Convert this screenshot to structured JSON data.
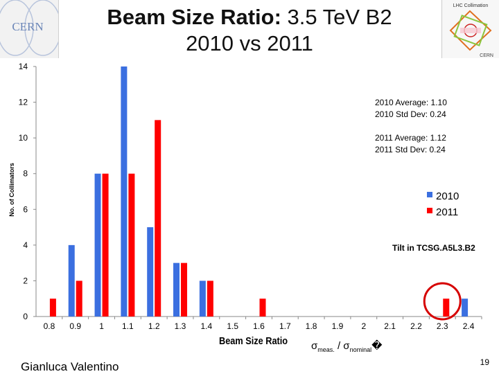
{
  "slide": {
    "title_bold": "Beam Size Ratio:",
    "title_rest": " 3.5 TeV B2",
    "title_line2": "2010 vs 2011",
    "author": "Gianluca Valentino",
    "page_number": "19",
    "logo_left_text": "CERN",
    "logo_right_title": "LHC Collimation",
    "logo_right_bottom": "CERN"
  },
  "chart_data": {
    "type": "bar",
    "categories": [
      "0.8",
      "0.9",
      "1",
      "1.1",
      "1.2",
      "1.3",
      "1.4",
      "1.5",
      "1.6",
      "1.7",
      "1.8",
      "1.9",
      "2",
      "2.1",
      "2.2",
      "2.3",
      "2.4"
    ],
    "series": [
      {
        "name": "2010",
        "color": "#3b6fe0",
        "values": [
          0,
          4,
          8,
          14,
          5,
          3,
          2,
          0,
          0,
          0,
          0,
          0,
          0,
          0,
          0,
          0,
          1
        ]
      },
      {
        "name": "2011",
        "color": "#ff0000",
        "values": [
          1,
          2,
          8,
          8,
          11,
          3,
          2,
          0,
          1,
          0,
          0,
          0,
          0,
          0,
          0,
          1,
          0
        ]
      }
    ],
    "ylabel": "No. of Collimators",
    "xlabel": "Beam Size Ratio",
    "formula": {
      "sigma1": "σ",
      "sub1": "meas.",
      "sep": " / ",
      "sigma2": "σ",
      "sub2": "nominal",
      "tail": "�"
    },
    "ylim": [
      0,
      14
    ],
    "yticks": [
      0,
      2,
      4,
      6,
      8,
      10,
      12,
      14
    ],
    "grid": false,
    "legend_position": "right",
    "stats_2010": [
      "2010 Average: 1.10",
      "2010 Std Dev: 0.24"
    ],
    "stats_2011": [
      "2011 Average: 1.12",
      "2011 Std Dev: 0.24"
    ],
    "annotation": "Tilt in TCSG.A5L3.B2",
    "highlight_category": "2.3",
    "highlight_color": "#d60000"
  }
}
